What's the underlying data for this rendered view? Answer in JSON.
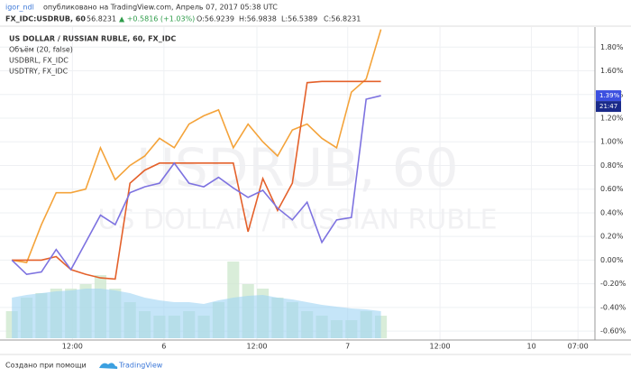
{
  "chart_data": {
    "type": "line",
    "header": {
      "author": "igor_ndl",
      "published": "опубликовано на TradingView.com, Апрель 07, 2017 05:38 UTC",
      "symbol": "FX_IDC:USDRUB, 60",
      "price": "56.8231",
      "change": "▲ +0.5816 (+1.03%)",
      "open": "O:56.9239",
      "high": "H:56.9838",
      "low": "L:56.5389",
      "close": "C:56.8231"
    },
    "legend_titles": [
      "US DOLLAR / RUSSIAN RUBLE, 60, FX_IDC",
      "Объём (20, false)",
      "USDBRL, FX_IDC",
      "USDTRY, FX_IDC"
    ],
    "watermark": [
      "USDRUB, 60",
      "US DOLLAR / RUSSIAN RUBLE"
    ],
    "x": [
      1,
      3,
      5,
      7,
      9,
      11,
      13,
      15,
      17,
      19,
      21,
      23,
      25,
      27,
      29,
      31,
      33,
      35,
      37,
      39,
      41,
      43,
      45,
      47,
      49,
      51
    ],
    "series": [
      {
        "name": "USDBRL",
        "color": "#f4a33a",
        "values": [
          0,
          -0.02,
          0.3,
          0.57,
          0.57,
          0.6,
          0.95,
          0.68,
          0.8,
          0.88,
          1.03,
          0.95,
          1.15,
          1.22,
          1.27,
          0.95,
          1.15,
          1.0,
          0.88,
          1.1,
          1.15,
          1.03,
          0.95,
          1.42,
          1.53,
          1.95
        ]
      },
      {
        "name": "USDRUB",
        "color": "#e4612b",
        "values": [
          0,
          0,
          0,
          0.03,
          -0.08,
          -0.12,
          -0.15,
          -0.16,
          0.65,
          0.76,
          0.82,
          0.82,
          0.82,
          0.82,
          0.82,
          0.82,
          0.24,
          0.69,
          0.42,
          0.65,
          1.5,
          1.51,
          1.51,
          1.51,
          1.51,
          1.51
        ]
      },
      {
        "name": "USDTRY",
        "color": "#7d72e0",
        "values": [
          0,
          -0.12,
          -0.1,
          0.09,
          -0.08,
          0.15,
          0.38,
          0.3,
          0.57,
          0.62,
          0.65,
          0.82,
          0.65,
          0.62,
          0.7,
          0.61,
          0.53,
          0.59,
          0.44,
          0.34,
          0.49,
          0.15,
          0.34,
          0.36,
          1.36,
          1.39
        ]
      }
    ],
    "volume": {
      "color": "#cfe8cf",
      "values": [
        30,
        45,
        50,
        55,
        55,
        60,
        70,
        55,
        40,
        30,
        25,
        25,
        30,
        25,
        40,
        85,
        60,
        55,
        45,
        40,
        30,
        25,
        20,
        20,
        30,
        25
      ]
    },
    "volume_ma": {
      "color": "#9fd3f3",
      "values": [
        45,
        48,
        50,
        52,
        53,
        55,
        55,
        53,
        50,
        45,
        42,
        40,
        40,
        38,
        42,
        45,
        47,
        48,
        45,
        43,
        40,
        37,
        35,
        33,
        32,
        30
      ]
    },
    "xlim": [
      0,
      80
    ],
    "xticks": [
      {
        "value": 9.2,
        "label": "12:00"
      },
      {
        "value": 21.6,
        "label": "6"
      },
      {
        "value": 34.2,
        "label": "12:00"
      },
      {
        "value": 46.5,
        "label": "7"
      },
      {
        "value": 59,
        "label": "12:00"
      },
      {
        "value": 71.4,
        "label": "10"
      },
      {
        "value": 77.7,
        "label": "07:00"
      }
    ],
    "ylim": [
      -0.66,
      1.97
    ],
    "yticks": [
      {
        "value": 1.8,
        "label": "1.80%"
      },
      {
        "value": 1.6,
        "label": "1.60%"
      },
      {
        "value": 1.4,
        "label": "1.40%"
      },
      {
        "value": 1.2,
        "label": "1.20%"
      },
      {
        "value": 1.0,
        "label": "1.00%"
      },
      {
        "value": 0.8,
        "label": "0.80%"
      },
      {
        "value": 0.6,
        "label": "0.60%"
      },
      {
        "value": 0.4,
        "label": "0.40%"
      },
      {
        "value": 0.2,
        "label": "0.20%"
      },
      {
        "value": 0,
        "label": "0.00%"
      },
      {
        "value": -0.2,
        "label": "-0.20%"
      },
      {
        "value": -0.4,
        "label": "-0.40%"
      },
      {
        "value": -0.6,
        "label": "-0.60%"
      }
    ],
    "last_value": {
      "value": 1.39,
      "label": "1.39%"
    },
    "time_label": "21:47",
    "grid": true,
    "footer": [
      "Создано при помощи",
      "TradingView"
    ]
  }
}
